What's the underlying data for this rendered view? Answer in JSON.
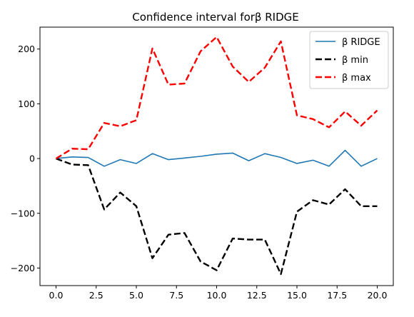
{
  "chart_data": {
    "type": "line",
    "title": "Confidence interval forβ RIDGE",
    "xlabel": "",
    "ylabel": "",
    "xlim": [
      -1.0,
      21.0
    ],
    "ylim": [
      -232,
      240
    ],
    "xticks": [
      0.0,
      2.5,
      5.0,
      7.5,
      10.0,
      12.5,
      15.0,
      17.5,
      20.0
    ],
    "xtick_labels": [
      "0.0",
      "2.5",
      "5.0",
      "7.5",
      "10.0",
      "12.5",
      "15.0",
      "17.5",
      "20.0"
    ],
    "yticks": [
      -200,
      -100,
      0,
      100,
      200
    ],
    "ytick_labels": [
      "−200",
      "−100",
      "0",
      "100",
      "200"
    ],
    "grid": false,
    "legend_position": "top-right",
    "x": [
      0,
      1,
      2,
      3,
      4,
      5,
      6,
      7,
      8,
      9,
      10,
      11,
      12,
      13,
      14,
      15,
      16,
      17,
      18,
      19,
      20
    ],
    "series": [
      {
        "name": "β RIDGE",
        "color": "#1f77b4",
        "style": "solid",
        "values": [
          0,
          3,
          2,
          -14,
          -2,
          -9,
          9,
          -2,
          1,
          4,
          8,
          10,
          -4,
          9,
          2,
          -9,
          -3,
          -14,
          15,
          -14,
          0
        ]
      },
      {
        "name": "β min",
        "color": "#000000",
        "style": "dashed",
        "values": [
          0,
          -11,
          -12,
          -93,
          -62,
          -87,
          -182,
          -139,
          -136,
          -188,
          -204,
          -146,
          -148,
          -148,
          -211,
          -97,
          -76,
          -84,
          -56,
          -87,
          -87
        ]
      },
      {
        "name": "β max",
        "color": "#ff0000",
        "style": "dashed",
        "values": [
          0,
          18,
          17,
          65,
          59,
          70,
          201,
          135,
          137,
          196,
          222,
          168,
          140,
          166,
          214,
          79,
          72,
          57,
          86,
          60,
          88
        ]
      }
    ]
  }
}
